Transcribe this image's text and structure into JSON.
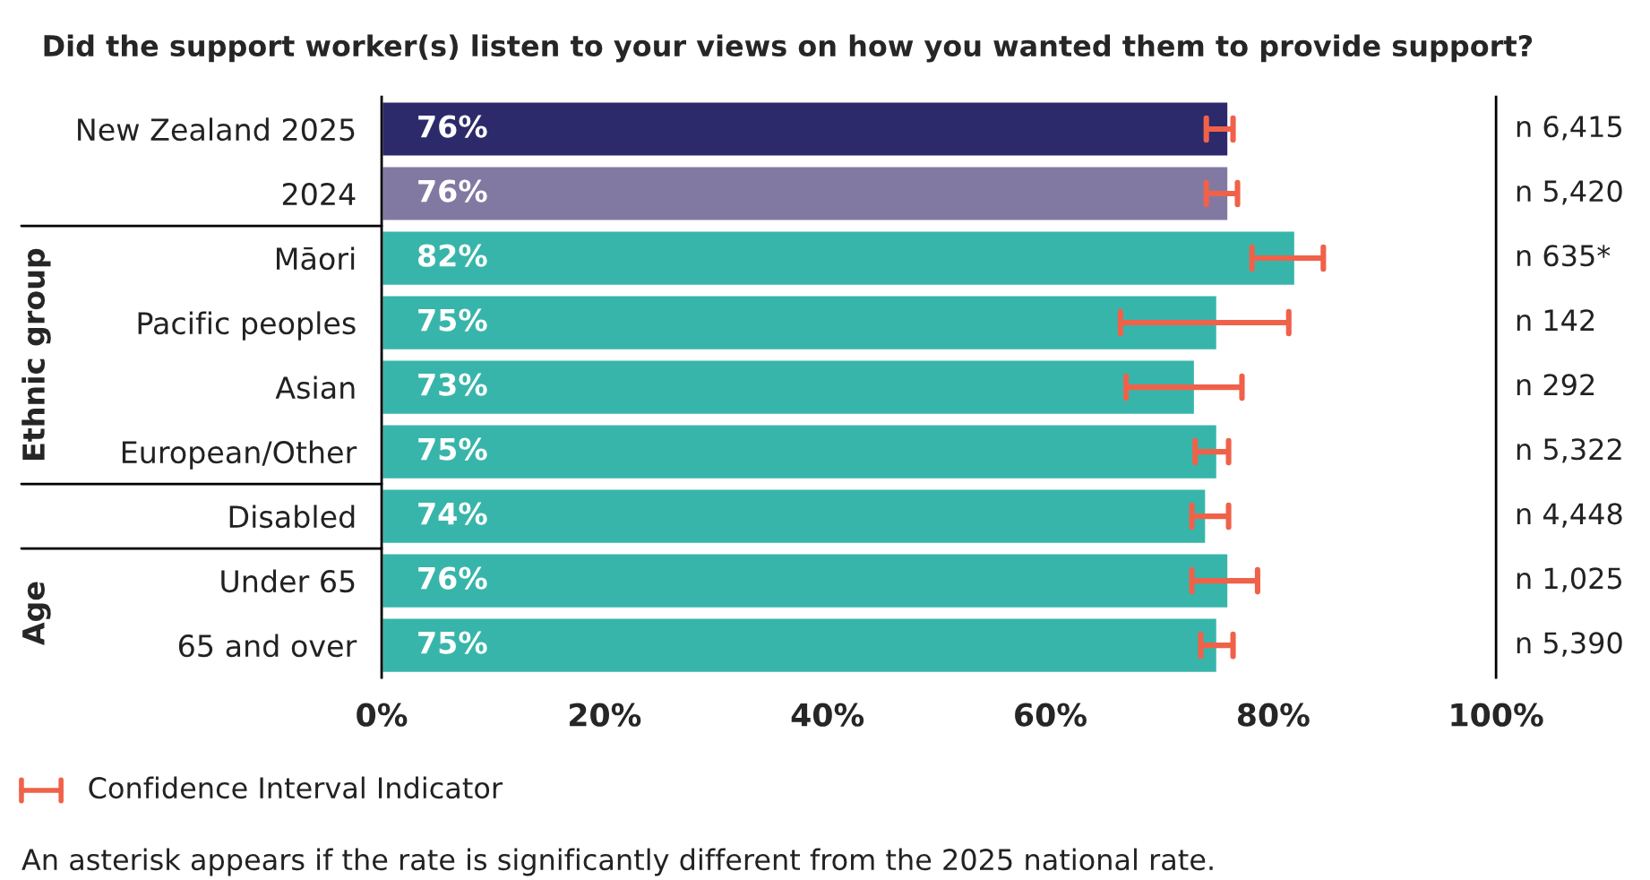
{
  "chart_data": {
    "type": "bar",
    "orientation": "horizontal",
    "title": "Did the support worker(s) listen to your views on how you wanted them to provide support?",
    "categories": [
      "New Zealand 2025",
      "2024",
      "Māori",
      "Pacific peoples",
      "Asian",
      "European/Other",
      "Disabled",
      "Under 65",
      "65 and over"
    ],
    "values": [
      76,
      76,
      82,
      75,
      73,
      75,
      74,
      76,
      75
    ],
    "colors": [
      "#2d2a6b",
      "#8279a3",
      "#38b5aa",
      "#38b5aa",
      "#38b5aa",
      "#38b5aa",
      "#38b5aa",
      "#38b5aa",
      "#38b5aa"
    ],
    "errors": [
      [
        74,
        76.4
      ],
      [
        74,
        76.8
      ],
      [
        78.1,
        84.5
      ],
      [
        66.3,
        81.4
      ],
      [
        66.8,
        77.2
      ],
      [
        73,
        76
      ],
      [
        72.7,
        76
      ],
      [
        72.7,
        78.6
      ],
      [
        73.5,
        76.4
      ]
    ],
    "value_labels": [
      "76%",
      "76%",
      "82%",
      "75%",
      "73%",
      "75%",
      "74%",
      "76%",
      "75%"
    ],
    "xlim": [
      0,
      100
    ],
    "xticks": [
      {
        "value": 0,
        "label": "0%"
      },
      {
        "value": 20,
        "label": "20%"
      },
      {
        "value": 40,
        "label": "40%"
      },
      {
        "value": 60,
        "label": "60%"
      },
      {
        "value": 80,
        "label": "80%"
      },
      {
        "value": 100,
        "label": "100%"
      }
    ],
    "grid": false,
    "annotations": [
      "n 6,415",
      "n 5,420",
      "n 635*",
      "n 142",
      "n 292",
      "n 5,322",
      "n 4,448",
      "n 1,025",
      "n 5,390",
      "Ethnic group",
      "Age",
      "Confidence Interval Indicator",
      "An asterisk appears if the rate is significantly different from the 2025 national rate."
    ]
  }
}
